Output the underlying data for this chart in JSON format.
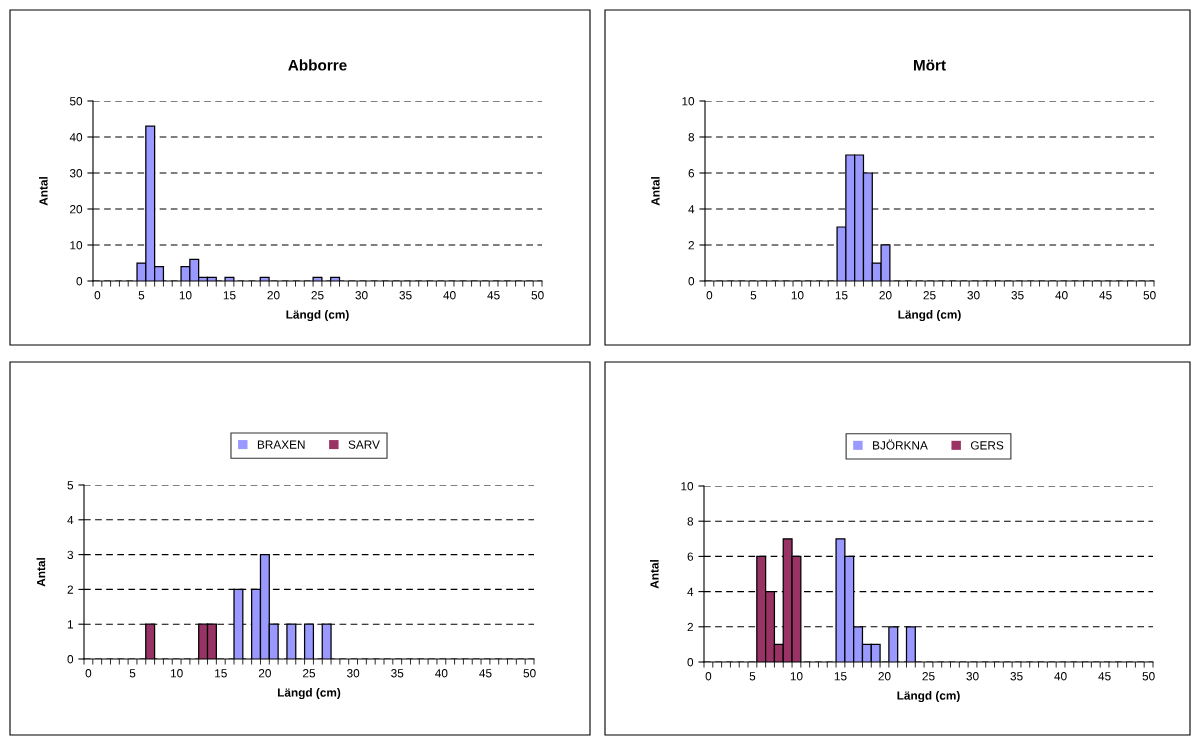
{
  "chart_data": [
    {
      "type": "bar",
      "title": "Abborre",
      "xlabel": "Längd (cm)",
      "ylabel": "Antal",
      "categories": [
        "0",
        null,
        null,
        null,
        null,
        "5",
        null,
        null,
        null,
        null,
        "10",
        null,
        null,
        null,
        null,
        "15",
        null,
        null,
        null,
        null,
        "20",
        null,
        null,
        null,
        null,
        "25",
        null,
        null,
        null,
        null,
        "30",
        null,
        null,
        null,
        null,
        "35",
        null,
        null,
        null,
        null,
        "40",
        null,
        null,
        null,
        null,
        "45",
        null,
        null,
        null,
        null,
        "50"
      ],
      "series": [
        {
          "color": "#9999ff",
          "values": [
            0,
            0,
            0,
            0,
            0,
            5,
            43,
            4,
            0,
            0,
            4,
            6,
            1,
            1,
            0,
            1,
            0,
            0,
            0,
            1,
            0,
            0,
            0,
            0,
            0,
            1,
            0,
            1,
            0,
            0,
            0,
            0,
            0,
            0,
            0,
            0,
            0,
            0,
            0,
            0,
            0,
            0,
            0,
            0,
            0,
            0,
            0,
            0,
            0,
            0,
            0
          ]
        }
      ],
      "ylim": [
        0,
        50
      ],
      "yticks": [
        0,
        10,
        20,
        30,
        40,
        50
      ],
      "grid": "y"
    },
    {
      "type": "bar",
      "title": "Mört",
      "xlabel": "Längd (cm)",
      "ylabel": "Antal",
      "categories": [
        "0",
        null,
        null,
        null,
        null,
        "5",
        null,
        null,
        null,
        null,
        "10",
        null,
        null,
        null,
        null,
        "15",
        null,
        null,
        null,
        null,
        "20",
        null,
        null,
        null,
        null,
        "25",
        null,
        null,
        null,
        null,
        "30",
        null,
        null,
        null,
        null,
        "35",
        null,
        null,
        null,
        null,
        "40",
        null,
        null,
        null,
        null,
        "45",
        null,
        null,
        null,
        null,
        "50"
      ],
      "series": [
        {
          "color": "#9999ff",
          "values": [
            0,
            0,
            0,
            0,
            0,
            0,
            0,
            0,
            0,
            0,
            0,
            0,
            0,
            0,
            0,
            3,
            7,
            7,
            6,
            1,
            2,
            0,
            0,
            0,
            0,
            0,
            0,
            0,
            0,
            0,
            0,
            0,
            0,
            0,
            0,
            0,
            0,
            0,
            0,
            0,
            0,
            0,
            0,
            0,
            0,
            0,
            0,
            0,
            0,
            0,
            0
          ]
        }
      ],
      "ylim": [
        0,
        10
      ],
      "yticks": [
        0,
        2,
        4,
        6,
        8,
        10
      ],
      "grid": "y"
    },
    {
      "type": "bar",
      "xlabel": "Längd (cm)",
      "ylabel": "Antal",
      "categories": [
        "0",
        null,
        null,
        null,
        null,
        "5",
        null,
        null,
        null,
        null,
        "10",
        null,
        null,
        null,
        null,
        "15",
        null,
        null,
        null,
        null,
        "20",
        null,
        null,
        null,
        null,
        "25",
        null,
        null,
        null,
        null,
        "30",
        null,
        null,
        null,
        null,
        "35",
        null,
        null,
        null,
        null,
        "40",
        null,
        null,
        null,
        null,
        "45",
        null,
        null,
        null,
        null,
        "50"
      ],
      "series": [
        {
          "name": "BRAXEN",
          "color": "#9999ff",
          "values": [
            0,
            0,
            0,
            0,
            0,
            0,
            0,
            0,
            0,
            0,
            0,
            0,
            0,
            0,
            0,
            0,
            0,
            2,
            0,
            2,
            3,
            1,
            0,
            1,
            0,
            1,
            0,
            1,
            0,
            0,
            0,
            0,
            0,
            0,
            0,
            0,
            0,
            0,
            0,
            0,
            0,
            0,
            0,
            0,
            0,
            0,
            0,
            0,
            0,
            0,
            0
          ]
        },
        {
          "name": "SARV",
          "color": "#993366",
          "values": [
            0,
            0,
            0,
            0,
            0,
            0,
            0,
            1,
            0,
            0,
            0,
            0,
            0,
            1,
            1,
            0,
            0,
            0,
            0,
            0,
            0,
            0,
            0,
            0,
            0,
            0,
            0,
            0,
            0,
            0,
            0,
            0,
            0,
            0,
            0,
            0,
            0,
            0,
            0,
            0,
            0,
            0,
            0,
            0,
            0,
            0,
            0,
            0,
            0,
            0,
            0
          ]
        }
      ],
      "ylim": [
        0,
        5
      ],
      "yticks": [
        0,
        1,
        2,
        3,
        4,
        5
      ],
      "grid": "y",
      "legend": "top"
    },
    {
      "type": "bar",
      "xlabel": "Längd (cm)",
      "ylabel": "Antal",
      "categories": [
        "0",
        null,
        null,
        null,
        null,
        "5",
        null,
        null,
        null,
        null,
        "10",
        null,
        null,
        null,
        null,
        "15",
        null,
        null,
        null,
        null,
        "20",
        null,
        null,
        null,
        null,
        "25",
        null,
        null,
        null,
        null,
        "30",
        null,
        null,
        null,
        null,
        "35",
        null,
        null,
        null,
        null,
        "40",
        null,
        null,
        null,
        null,
        "45",
        null,
        null,
        null,
        null,
        "50"
      ],
      "series": [
        {
          "name": "BJÖRKNA",
          "color": "#9999ff",
          "values": [
            0,
            0,
            0,
            0,
            0,
            0,
            0,
            0,
            0,
            0,
            0,
            0,
            0,
            0,
            0,
            7,
            6,
            2,
            1,
            1,
            0,
            2,
            0,
            2,
            0,
            0,
            0,
            0,
            0,
            0,
            0,
            0,
            0,
            0,
            0,
            0,
            0,
            0,
            0,
            0,
            0,
            0,
            0,
            0,
            0,
            0,
            0,
            0,
            0,
            0,
            0
          ]
        },
        {
          "name": "GERS",
          "color": "#993366",
          "values": [
            0,
            0,
            0,
            0,
            0,
            0,
            6,
            4,
            1,
            7,
            6,
            0,
            0,
            0,
            0,
            0,
            0,
            0,
            0,
            0,
            0,
            0,
            0,
            0,
            0,
            0,
            0,
            0,
            0,
            0,
            0,
            0,
            0,
            0,
            0,
            0,
            0,
            0,
            0,
            0,
            0,
            0,
            0,
            0,
            0,
            0,
            0,
            0,
            0,
            0,
            0
          ]
        }
      ],
      "ylim": [
        0,
        10
      ],
      "yticks": [
        0,
        2,
        4,
        6,
        8,
        10
      ],
      "grid": "y",
      "legend": "top"
    }
  ]
}
